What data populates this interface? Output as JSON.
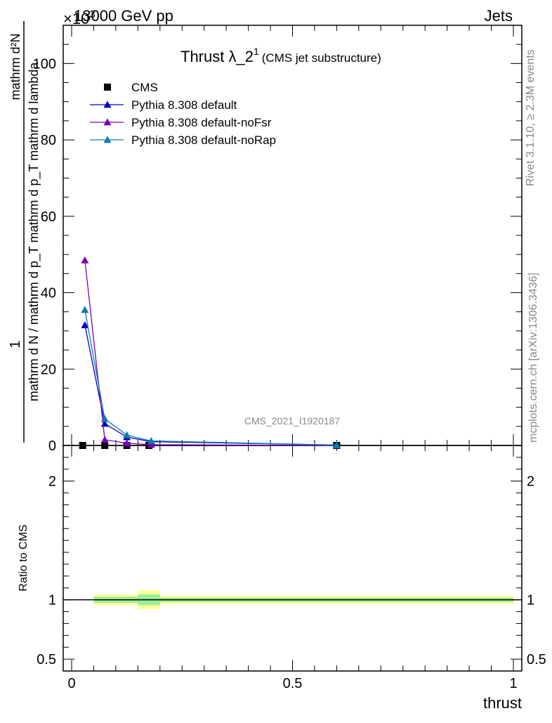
{
  "header": {
    "left": "13000 GeV pp",
    "right": "Jets",
    "exponent": "×10",
    "exponent_power": "3"
  },
  "side_labels": {
    "rivet": "Rivet 3.1.10, ≥ 2.3M events",
    "mcplots": "mcplots.cern.ch [arXiv:1306.3436]"
  },
  "title": {
    "main": "Thrust λ_2",
    "sup": "1",
    "sub": "(CMS jet substructure)"
  },
  "watermark": "CMS_2021_I1920187",
  "y_axis_main": {
    "numerator": "1",
    "denominator": "mathrm d N / mathrm d p_T mathrm d p_T mathrm d lambda",
    "top": "mathrm d²N"
  },
  "ratio_ylabel": "Ratio to CMS",
  "xlabel": "thrust",
  "legend": [
    {
      "label": "CMS",
      "color": "#000000",
      "marker": "square"
    },
    {
      "label": "Pythia 8.308 default",
      "color": "#0000cc",
      "marker": "triangle"
    },
    {
      "label": "Pythia 8.308 default-noFsr",
      "color": "#7b00b4",
      "marker": "triangle"
    },
    {
      "label": "Pythia 8.308 default-noRap",
      "color": "#0a7fa8",
      "marker": "triangle"
    }
  ],
  "chart_data": {
    "type": "line",
    "xlim": [
      0,
      1
    ],
    "ylim": [
      0,
      110
    ],
    "ratio_ylim": [
      0.4,
      2.3
    ],
    "y_ticks": [
      0,
      20,
      40,
      60,
      80,
      100
    ],
    "y_tick_labels": [
      "0",
      "20",
      "40",
      "60",
      "80",
      "100"
    ],
    "x_ticks": [
      0,
      0.5,
      1
    ],
    "x_tick_labels": [
      "0",
      "0.5",
      "1"
    ],
    "ratio_ticks": [
      0.5,
      1,
      2
    ],
    "ratio_tick_labels": [
      "0.5",
      "1",
      "2"
    ],
    "series": [
      {
        "name": "CMS",
        "color": "#000000",
        "marker": "square",
        "x": [
          0.025,
          0.075,
          0.125,
          0.175,
          0.6
        ],
        "y": [
          0.0,
          0.0,
          0.0,
          0.0,
          0.0
        ]
      },
      {
        "name": "Pythia 8.308 default",
        "color": "#0000cc",
        "marker": "triangle",
        "x": [
          0.03,
          0.075,
          0.125,
          0.18,
          0.6
        ],
        "y": [
          31.5,
          5.7,
          2.2,
          1.0,
          0.1
        ]
      },
      {
        "name": "Pythia 8.308 default-noFsr",
        "color": "#7b00b4",
        "marker": "triangle",
        "x": [
          0.03,
          0.075,
          0.125,
          0.18,
          0.6
        ],
        "y": [
          48.5,
          1.5,
          0.6,
          0.2,
          0.0
        ]
      },
      {
        "name": "Pythia 8.308 default-noRap",
        "color": "#0a7fa8",
        "marker": "triangle",
        "x": [
          0.03,
          0.075,
          0.125,
          0.18,
          0.6
        ],
        "y": [
          35.5,
          7.0,
          2.7,
          1.2,
          0.1
        ]
      }
    ],
    "ratio_band": {
      "x_edges": [
        0.05,
        0.15,
        0.2,
        1.0
      ],
      "yellow_half": [
        0.045,
        0.08,
        0.035
      ],
      "green_half": [
        0.025,
        0.045,
        0.018
      ]
    }
  }
}
